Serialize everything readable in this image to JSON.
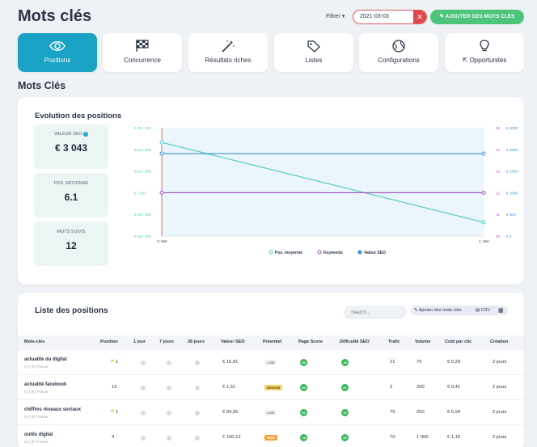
{
  "header": {
    "title": "Mots clés",
    "filter_label": "Filtrer",
    "date_value": "2021-03-03",
    "add_button": "AJOUTER DES MOTS CLÉS"
  },
  "tabs": [
    {
      "label": "Positions",
      "icon": "eye-icon",
      "active": true
    },
    {
      "label": "Concurrence",
      "icon": "checkered-flag-icon",
      "active": false
    },
    {
      "label": "Résultats riches",
      "icon": "magic-wand-icon",
      "active": false
    },
    {
      "label": "Listes",
      "icon": "tag-icon",
      "active": false
    },
    {
      "label": "Configurations",
      "icon": "globe-icon",
      "active": false
    },
    {
      "label": "Opportunités",
      "icon": "lightbulb-icon",
      "active": false
    }
  ],
  "section_title": "Mots Clés",
  "chart_section": {
    "title": "Evolution des positions",
    "kpis": [
      {
        "label": "VALEUR SEO",
        "value": "€ 3 043"
      },
      {
        "label": "POS. MOYENNE",
        "value": "6.1"
      },
      {
        "label": "MOTS SUIVIS",
        "value": "12"
      }
    ]
  },
  "chart_data": {
    "type": "line",
    "categories": [
      "3. Mar",
      "4. Mar"
    ],
    "y_left_ticks": [
      "5.78 / 100",
      "5.84 / 100",
      "5.93 / 100",
      "6 / 100",
      "6.08 / 100",
      "6.16 / 100"
    ],
    "y_right_ticks_keywords": [
      "15",
      "14",
      "13",
      "12",
      "11",
      "10"
    ],
    "y_right_ticks_value": [
      "€ 4000",
      "€ 3200",
      "€ 2400",
      "€ 1600",
      "€ 800",
      "€ 0"
    ],
    "series": [
      {
        "name": "Pos. moyenne",
        "values": [
          6.08,
          5.8
        ],
        "color": "#4cc8c0"
      },
      {
        "name": "Keywords",
        "values": [
          12,
          12
        ],
        "color": "#a04fc0"
      },
      {
        "name": "Valeur SEO",
        "values": [
          3043,
          3043
        ],
        "color": "#3f8fd4"
      }
    ],
    "legend_position": "bottom"
  },
  "list_section": {
    "title": "Liste des positions",
    "search_placeholder": "Search...",
    "add_keywords": "Ajouter des mots clés",
    "csv_label": "CSV",
    "columns": [
      "Mots-clés",
      "Position",
      "1 jour",
      "7 jours",
      "28 jours",
      "Valeur SEO",
      "Potentiel",
      "Page Score",
      "Difficulté SEO",
      "Trafic",
      "Volume",
      "Coût par clic",
      "Création"
    ],
    "rows": [
      {
        "keyword": "actualité du digital",
        "sub": "(fr) France",
        "position": "1",
        "star": true,
        "seo_value": "€ 16,81",
        "potential": "LOW",
        "page_score": "98",
        "difficulty": "15",
        "traffic": "21",
        "volume": "70",
        "cpc": "€ 0,29",
        "created": "2 jours"
      },
      {
        "keyword": "actualité facebook",
        "sub": "(fr) France",
        "position": "15",
        "star": false,
        "seo_value": "€ 1,61",
        "potential": "MEDIUM",
        "page_score": "84",
        "difficulty": "21",
        "traffic": "3",
        "volume": "260",
        "cpc": "€ 0,41",
        "created": "2 jours"
      },
      {
        "keyword": "chiffres réseaux sociaux",
        "sub": "(fr) France",
        "position": "1",
        "star": true,
        "seo_value": "€ 94,55",
        "potential": "LOW",
        "page_score": "81",
        "difficulty": "16",
        "traffic": "75",
        "volume": "260",
        "cpc": "€ 0,94",
        "created": "2 jours"
      },
      {
        "keyword": "outils digital",
        "sub": "(fr) France",
        "position": "4",
        "star": false,
        "seo_value": "€ 100,12",
        "potential": "HIGH",
        "page_score": "78",
        "difficulty": "29",
        "traffic": "70",
        "volume": "1 000",
        "cpc": "€ 1,16",
        "created": "2 jours"
      }
    ]
  }
}
